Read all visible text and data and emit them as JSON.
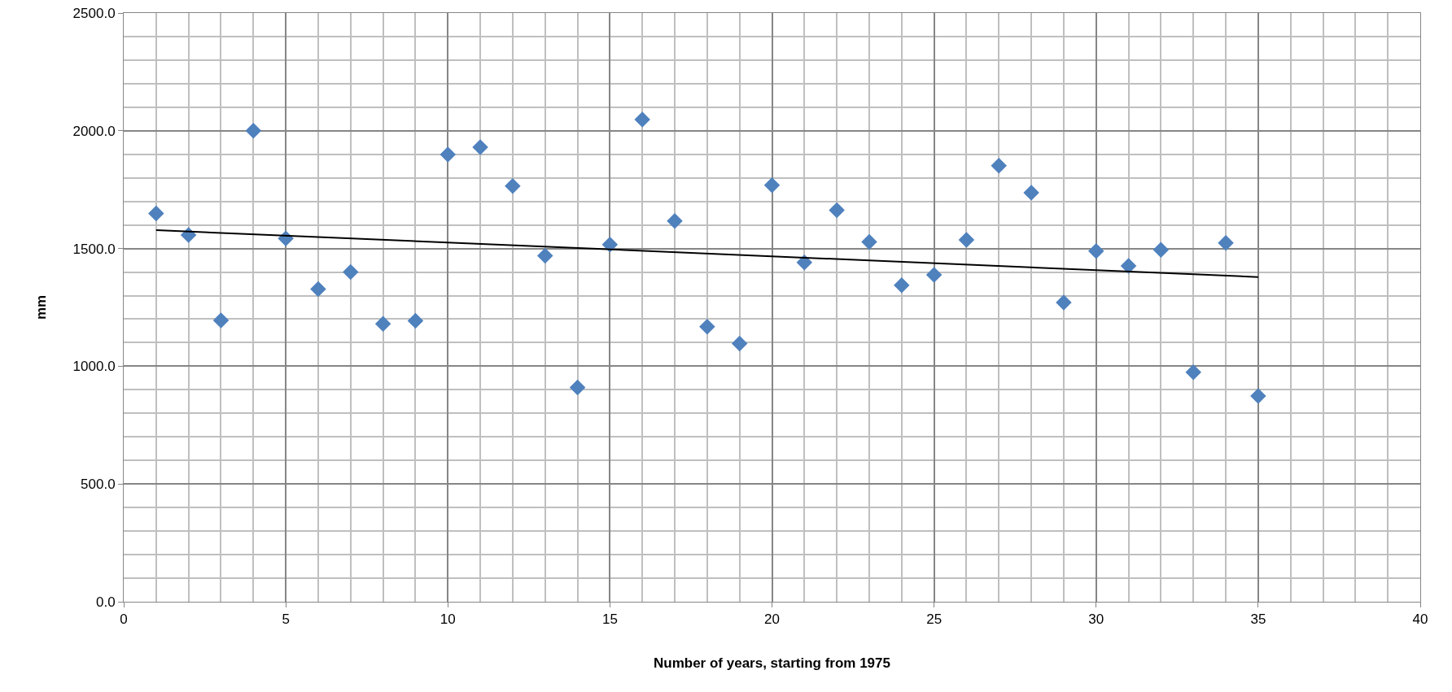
{
  "chart_data": {
    "type": "scatter",
    "xlabel": "Number of years, starting from 1975",
    "ylabel": "mm",
    "x": [
      1,
      2,
      3,
      4,
      5,
      6,
      7,
      8,
      9,
      10,
      11,
      12,
      13,
      14,
      15,
      16,
      17,
      18,
      19,
      20,
      21,
      22,
      23,
      24,
      25,
      26,
      27,
      28,
      29,
      30,
      31,
      32,
      33,
      34,
      35
    ],
    "series": [
      {
        "color": "#4f81bd",
        "values": [
          1649,
          1557,
          1195,
          2000,
          1543,
          1328,
          1400,
          1180,
          1193,
          1899,
          1930,
          1765,
          1469,
          910,
          1517,
          2048,
          1617,
          1168,
          1096,
          1769,
          1441,
          1663,
          1528,
          1344,
          1388,
          1537,
          1852,
          1737,
          1271,
          1489,
          1426,
          1494,
          975,
          1524,
          874
        ]
      },
      {
        "type": "line",
        "marker": "none",
        "color": "#000000",
        "x": [
          1,
          35
        ],
        "values": [
          1578,
          1379
        ]
      }
    ],
    "xlim": [
      0,
      40
    ],
    "xticks": [
      0,
      5,
      10,
      15,
      20,
      25,
      30,
      35,
      40
    ],
    "ylim": [
      0,
      2500
    ],
    "yticks": [
      {
        "value": 0,
        "label": "0.0"
      },
      {
        "value": 500,
        "label": "500.0"
      },
      {
        "value": 1000,
        "label": "1000.0"
      },
      {
        "value": 1500,
        "label": "1500.0"
      },
      {
        "value": 2000,
        "label": "2000.0"
      },
      {
        "value": 2500,
        "label": "2500.0"
      }
    ],
    "grid": true,
    "marker": "diamond"
  }
}
